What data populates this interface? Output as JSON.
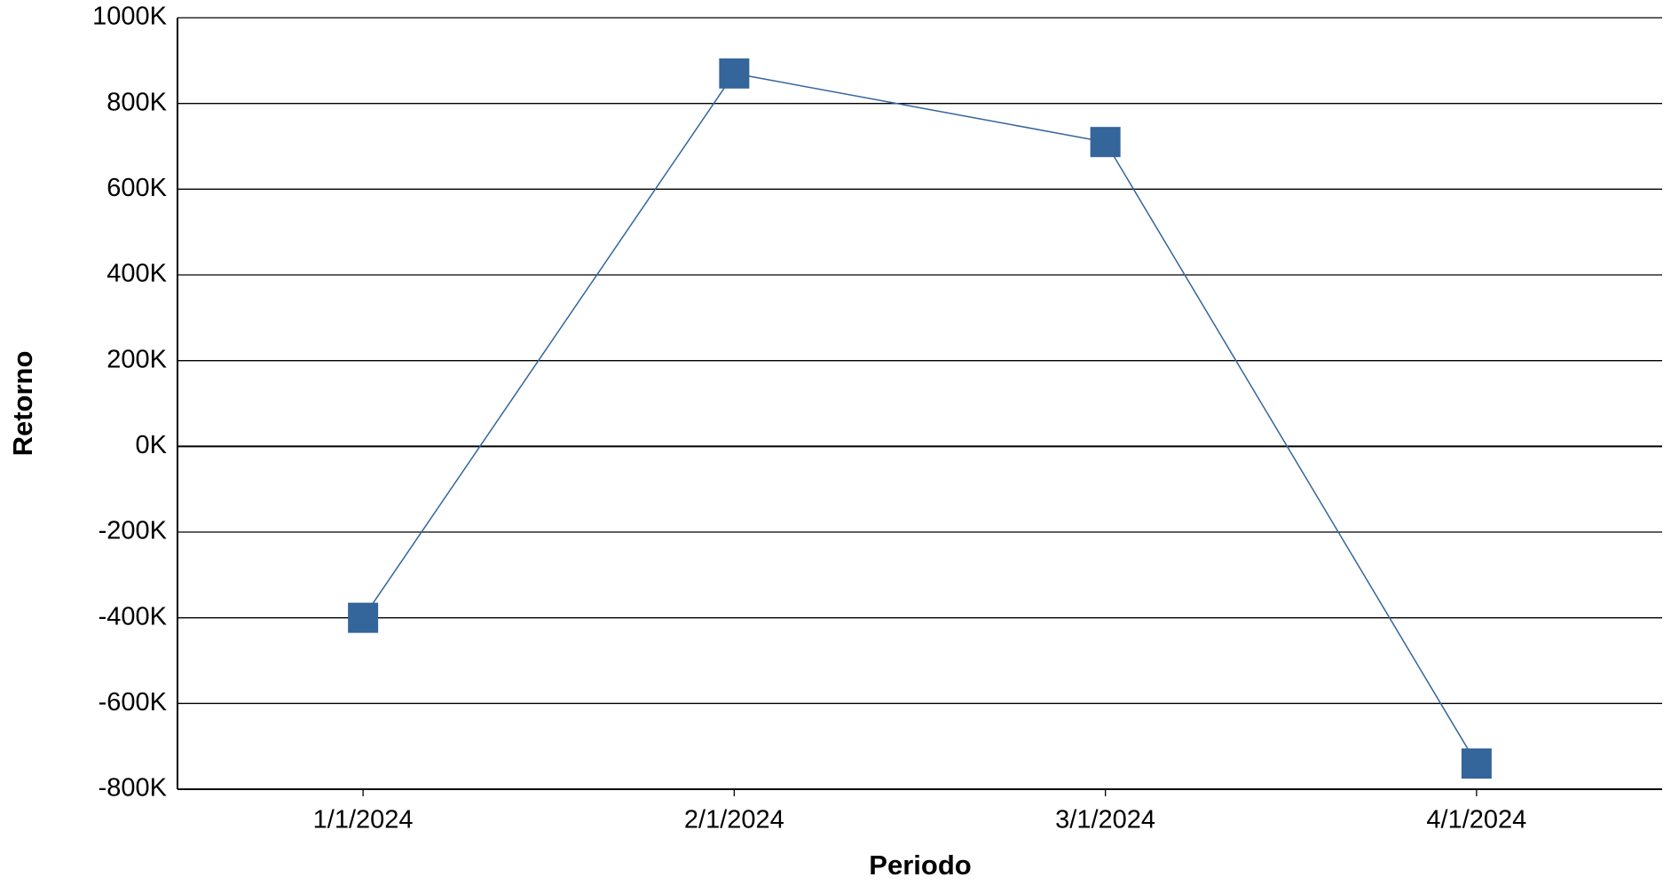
{
  "chart_data": {
    "type": "line",
    "x_label": "Periodo",
    "y_label": "Retorno",
    "categories": [
      "1/1/2024",
      "2/1/2024",
      "3/1/2024",
      "4/1/2024"
    ],
    "series": [
      {
        "name": "Retorno",
        "color": "#34659b",
        "values": [
          -400000,
          870000,
          710000,
          -740000
        ]
      }
    ],
    "ylim": [
      -800000,
      1000000
    ],
    "yticks": [
      {
        "value": -800000,
        "label": "-800K"
      },
      {
        "value": -600000,
        "label": "-600K"
      },
      {
        "value": -400000,
        "label": "-400K"
      },
      {
        "value": -200000,
        "label": "-200K"
      },
      {
        "value": 0,
        "label": "0K"
      },
      {
        "value": 200000,
        "label": "200K"
      },
      {
        "value": 400000,
        "label": "400K"
      },
      {
        "value": 600000,
        "label": "600K"
      },
      {
        "value": 800000,
        "label": "800K"
      },
      {
        "value": 1000000,
        "label": "1000K"
      }
    ],
    "grid": true
  }
}
